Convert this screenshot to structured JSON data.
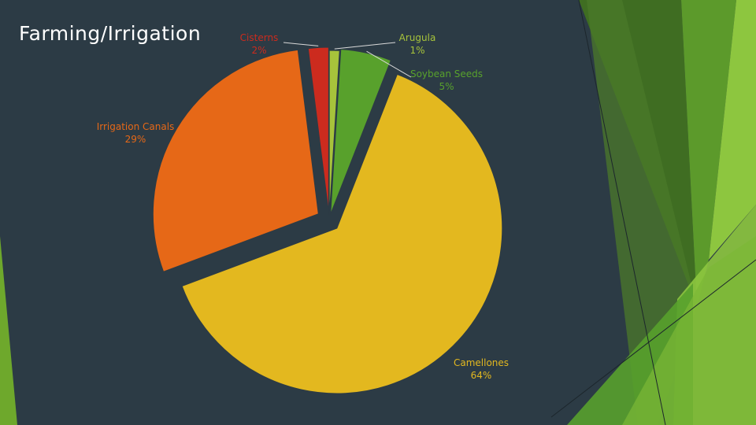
{
  "slide": {
    "title": "Farming/Irrigation"
  },
  "colors": {
    "background": "#2c3b45",
    "accent_green": "#8dc63f"
  },
  "chart_data": {
    "type": "pie",
    "title": "Farming/Irrigation",
    "slices": [
      {
        "label": "Arugula",
        "value": 1,
        "pct": "1%",
        "color": "#a7c33b"
      },
      {
        "label": "Soybean Seeds",
        "value": 5,
        "pct": "5%",
        "color": "#58a12c"
      },
      {
        "label": "Camellones",
        "value": 64,
        "pct": "64%",
        "color": "#e3b81f"
      },
      {
        "label": "Irrigation Canals",
        "value": 29,
        "pct": "29%",
        "color": "#e66817"
      },
      {
        "label": "Cisterns",
        "value": 2,
        "pct": "2%",
        "color": "#cc2b1e"
      }
    ]
  }
}
